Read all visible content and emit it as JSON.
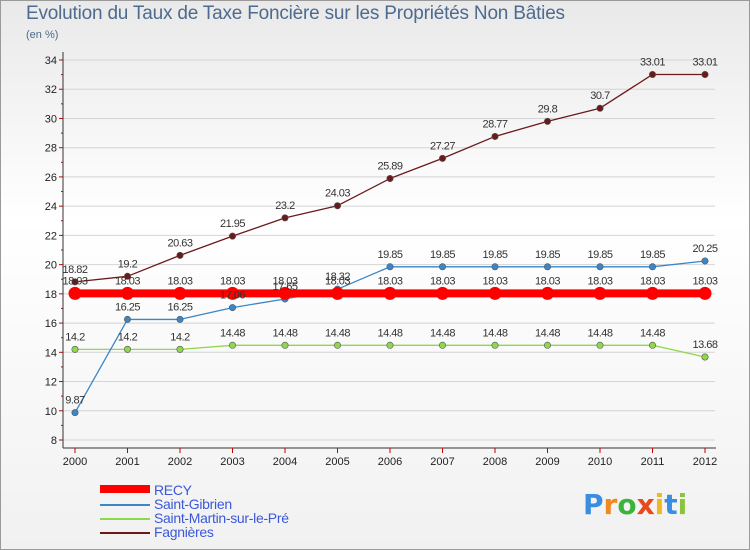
{
  "title": "Evolution du Taux de Taxe Foncière sur les Propriétés Non Bâties",
  "subtitle": "(en %)",
  "logo": {
    "text": "Proxiti",
    "letters": [
      "P",
      "r",
      "o",
      "x",
      "i",
      "t",
      "i"
    ],
    "colors": [
      "#3a8ee0",
      "#f08a1c",
      "#3cb43c",
      "#e84a1e",
      "#f0b81c",
      "#3a8ee0",
      "#8ac43a"
    ]
  },
  "chart_data": {
    "type": "line",
    "title": "Evolution du Taux de Taxe Foncière sur les Propriétés Non Bâties",
    "ylabel": "(en %)",
    "xlabel": "",
    "x": [
      "2000",
      "2001",
      "2002",
      "2003",
      "2004",
      "2005",
      "2006",
      "2007",
      "2008",
      "2009",
      "2010",
      "2011",
      "2012"
    ],
    "ylim": [
      8,
      34
    ],
    "yticks": [
      8,
      10,
      12,
      14,
      16,
      18,
      20,
      22,
      24,
      26,
      28,
      30,
      32,
      34
    ],
    "legend_position": "bottom-left",
    "series": [
      {
        "name": "RECY",
        "color": "#ff0000",
        "values": [
          18.03,
          18.03,
          18.03,
          18.03,
          18.03,
          18.03,
          18.03,
          18.03,
          18.03,
          18.03,
          18.03,
          18.03,
          18.03
        ],
        "labels": [
          "18.03",
          "18.03",
          "18.03",
          "18.03",
          "18.03",
          "18.03",
          "18.03",
          "18.03",
          "18.03",
          "18.03",
          "18.03",
          "18.03",
          "18.03"
        ]
      },
      {
        "name": "Saint-Gibrien",
        "color": "#3a86c8",
        "values": [
          9.87,
          16.25,
          16.25,
          17.06,
          17.65,
          18.32,
          19.85,
          19.85,
          19.85,
          19.85,
          19.85,
          19.85,
          20.25
        ],
        "labels": [
          "9.87",
          "16.25",
          "16.25",
          "17.06",
          "17.65",
          "18.32",
          "19.85",
          "19.85",
          "19.85",
          "19.85",
          "19.85",
          "19.85",
          "20.25"
        ]
      },
      {
        "name": "Saint-Martin-sur-le-Pré",
        "color": "#8ed84a",
        "values": [
          14.2,
          14.2,
          14.2,
          14.48,
          14.48,
          14.48,
          14.48,
          14.48,
          14.48,
          14.48,
          14.48,
          14.48,
          13.68
        ],
        "labels": [
          "14.2",
          "14.2",
          "14.2",
          "14.48",
          "14.48",
          "14.48",
          "14.48",
          "14.48",
          "14.48",
          "14.48",
          "14.48",
          "14.48",
          "13.68"
        ]
      },
      {
        "name": "Fagnières",
        "color": "#6b1a1a",
        "values": [
          18.82,
          19.2,
          20.63,
          21.95,
          23.2,
          24.03,
          25.89,
          27.27,
          28.77,
          29.8,
          30.7,
          33.01,
          33.01
        ],
        "labels": [
          "18.82",
          "19.2",
          "20.63",
          "21.95",
          "23.2",
          "24.03",
          "25.89",
          "27.27",
          "28.77",
          "29.8",
          "30.7",
          "33.01",
          "33.01"
        ]
      }
    ]
  }
}
